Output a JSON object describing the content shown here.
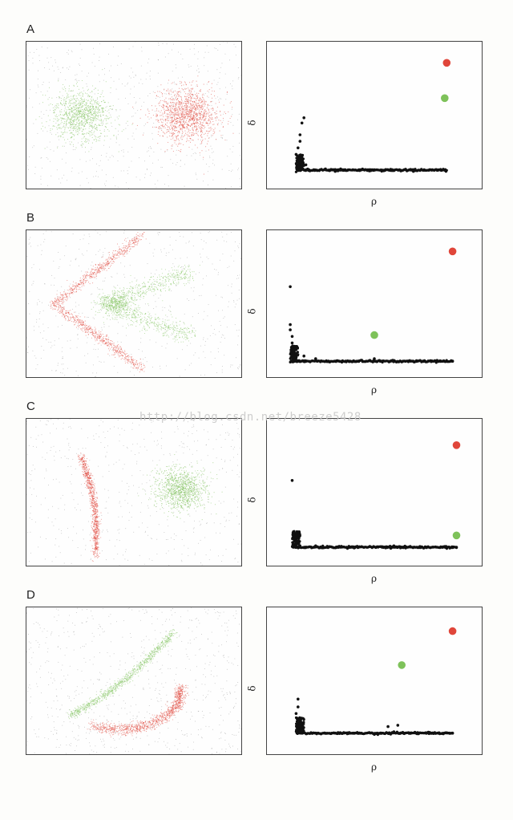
{
  "watermark": "http://blog.csdn.net/breeze5428",
  "colors": {
    "red": "#e0463a",
    "green": "#7ec25a",
    "black": "#111111",
    "noise": "#888888"
  },
  "chart_data": [
    {
      "type": "scatter",
      "label": "A",
      "xlabel": "ρ",
      "ylabel": "δ",
      "cluster_centers": [
        {
          "cluster": "red",
          "x": 0.87,
          "y": 0.9
        },
        {
          "cluster": "green",
          "x": 0.86,
          "y": 0.63
        }
      ],
      "decision_graph_points": [
        [
          0.1,
          0.2
        ],
        [
          0.11,
          0.25
        ],
        [
          0.12,
          0.3
        ],
        [
          0.12,
          0.35
        ],
        [
          0.13,
          0.44
        ],
        [
          0.14,
          0.48
        ],
        [
          0.11,
          0.15
        ],
        [
          0.15,
          0.12
        ],
        [
          0.2,
          0.08
        ],
        [
          0.3,
          0.07
        ],
        [
          0.5,
          0.08
        ],
        [
          0.7,
          0.07
        ],
        [
          0.86,
          0.08
        ]
      ],
      "baseline": {
        "x0": 0.1,
        "x1": 0.87,
        "y": 0.08
      }
    },
    {
      "type": "scatter",
      "label": "B",
      "xlabel": "ρ",
      "ylabel": "δ",
      "cluster_centers": [
        {
          "cluster": "red",
          "x": 0.9,
          "y": 0.9
        },
        {
          "cluster": "green",
          "x": 0.5,
          "y": 0.26
        }
      ],
      "decision_graph_points": [
        [
          0.07,
          0.63
        ],
        [
          0.07,
          0.34
        ],
        [
          0.07,
          0.3
        ],
        [
          0.08,
          0.25
        ],
        [
          0.08,
          0.2
        ],
        [
          0.09,
          0.15
        ],
        [
          0.1,
          0.12
        ],
        [
          0.14,
          0.1
        ],
        [
          0.2,
          0.08
        ],
        [
          0.3,
          0.06
        ],
        [
          0.5,
          0.08
        ],
        [
          0.7,
          0.06
        ],
        [
          0.9,
          0.06
        ]
      ],
      "baseline": {
        "x0": 0.07,
        "x1": 0.9,
        "y": 0.06
      }
    },
    {
      "type": "scatter",
      "label": "C",
      "xlabel": "ρ",
      "ylabel": "δ",
      "cluster_centers": [
        {
          "cluster": "red",
          "x": 0.92,
          "y": 0.86
        },
        {
          "cluster": "green",
          "x": 0.92,
          "y": 0.17
        }
      ],
      "decision_graph_points": [
        [
          0.08,
          0.59
        ],
        [
          0.09,
          0.2
        ],
        [
          0.09,
          0.17
        ],
        [
          0.09,
          0.14
        ],
        [
          0.1,
          0.11
        ],
        [
          0.12,
          0.09
        ],
        [
          0.2,
          0.09
        ],
        [
          0.4,
          0.08
        ],
        [
          0.6,
          0.09
        ],
        [
          0.8,
          0.08
        ],
        [
          0.92,
          0.08
        ]
      ],
      "baseline": {
        "x0": 0.08,
        "x1": 0.92,
        "y": 0.08
      }
    },
    {
      "type": "scatter",
      "label": "D",
      "xlabel": "ρ",
      "ylabel": "δ",
      "cluster_centers": [
        {
          "cluster": "red",
          "x": 0.9,
          "y": 0.88
        },
        {
          "cluster": "green",
          "x": 0.64,
          "y": 0.62
        }
      ],
      "decision_graph_points": [
        [
          0.11,
          0.36
        ],
        [
          0.11,
          0.3
        ],
        [
          0.1,
          0.25
        ],
        [
          0.11,
          0.2
        ],
        [
          0.12,
          0.15
        ],
        [
          0.13,
          0.12
        ],
        [
          0.2,
          0.1
        ],
        [
          0.3,
          0.1
        ],
        [
          0.5,
          0.09
        ],
        [
          0.57,
          0.15
        ],
        [
          0.62,
          0.16
        ],
        [
          0.6,
          0.11
        ],
        [
          0.8,
          0.1
        ],
        [
          0.9,
          0.1
        ]
      ],
      "baseline": {
        "x0": 0.1,
        "x1": 0.9,
        "y": 0.1
      }
    }
  ]
}
